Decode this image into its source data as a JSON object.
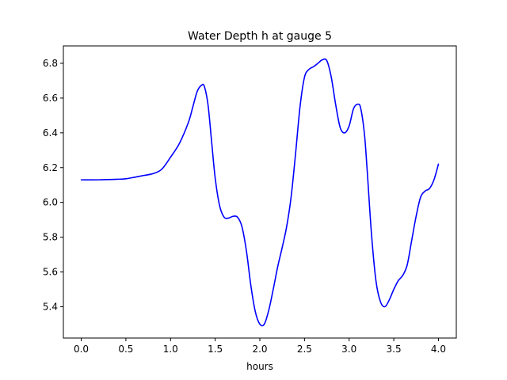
{
  "chart_data": {
    "type": "line",
    "title": "Water Depth h at gauge 5",
    "xlabel": "hours",
    "ylabel": "",
    "xlim": [
      -0.2,
      4.2
    ],
    "ylim": [
      5.22,
      6.9
    ],
    "xticks": [
      0.0,
      0.5,
      1.0,
      1.5,
      2.0,
      2.5,
      3.0,
      3.5,
      4.0
    ],
    "xtick_labels": [
      "0.0",
      "0.5",
      "1.0",
      "1.5",
      "2.0",
      "2.5",
      "3.0",
      "3.5",
      "4.0"
    ],
    "yticks": [
      5.4,
      5.6,
      5.8,
      6.0,
      6.2,
      6.4,
      6.6,
      6.8
    ],
    "ytick_labels": [
      "5.4",
      "5.6",
      "5.8",
      "6.0",
      "6.2",
      "6.4",
      "6.6",
      "6.8"
    ],
    "grid": false,
    "series": [
      {
        "color": "#0000ff",
        "x": [
          0.0,
          0.2,
          0.4,
          0.5,
          0.6,
          0.7,
          0.8,
          0.9,
          1.0,
          1.1,
          1.2,
          1.25,
          1.3,
          1.35,
          1.38,
          1.42,
          1.46,
          1.5,
          1.55,
          1.6,
          1.65,
          1.7,
          1.75,
          1.8,
          1.85,
          1.9,
          1.95,
          2.0,
          2.05,
          2.1,
          2.15,
          2.2,
          2.25,
          2.3,
          2.35,
          2.4,
          2.45,
          2.5,
          2.55,
          2.6,
          2.65,
          2.7,
          2.75,
          2.8,
          2.85,
          2.9,
          2.95,
          3.0,
          3.05,
          3.1,
          3.13,
          3.17,
          3.2,
          3.25,
          3.3,
          3.35,
          3.4,
          3.45,
          3.5,
          3.55,
          3.6,
          3.65,
          3.7,
          3.75,
          3.8,
          3.85,
          3.9,
          3.95,
          4.0
        ],
        "y": [
          6.13,
          6.13,
          6.133,
          6.136,
          6.145,
          6.155,
          6.165,
          6.19,
          6.26,
          6.34,
          6.46,
          6.55,
          6.64,
          6.675,
          6.665,
          6.56,
          6.35,
          6.14,
          5.98,
          5.915,
          5.91,
          5.92,
          5.915,
          5.86,
          5.72,
          5.52,
          5.37,
          5.3,
          5.3,
          5.38,
          5.5,
          5.63,
          5.74,
          5.86,
          6.03,
          6.28,
          6.55,
          6.72,
          6.765,
          6.78,
          6.8,
          6.82,
          6.815,
          6.72,
          6.56,
          6.43,
          6.4,
          6.44,
          6.54,
          6.565,
          6.54,
          6.4,
          6.2,
          5.82,
          5.55,
          5.43,
          5.4,
          5.44,
          5.5,
          5.55,
          5.58,
          5.64,
          5.78,
          5.92,
          6.03,
          6.065,
          6.08,
          6.13,
          6.22
        ]
      }
    ]
  }
}
